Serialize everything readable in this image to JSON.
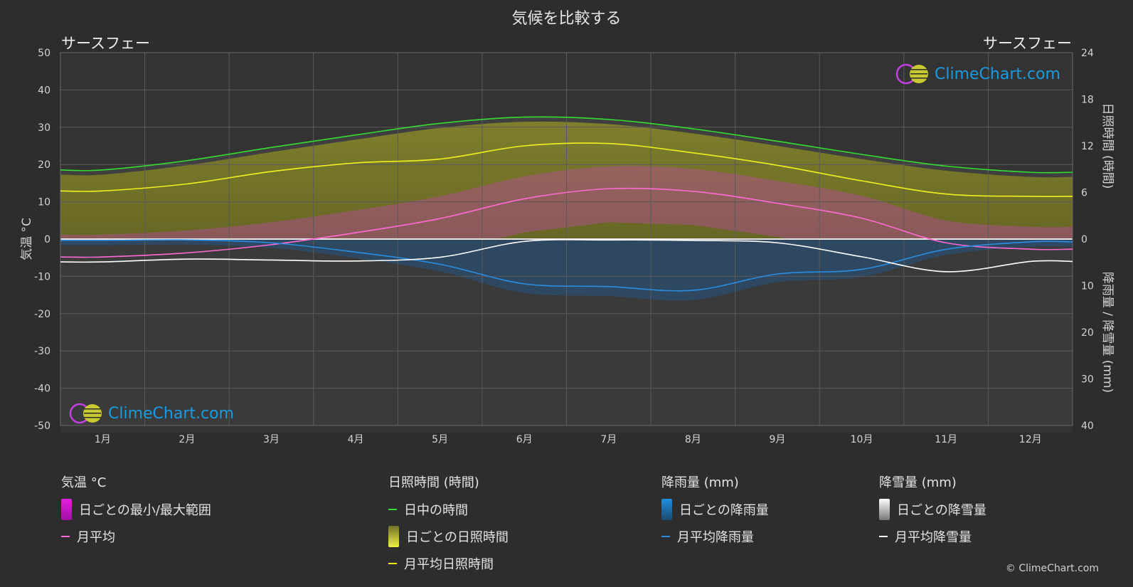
{
  "title": "気候を比較する",
  "location_left": "サースフェー",
  "location_right": "サースフェー",
  "logo_text": "ClimeChart.com",
  "copyright": "© ClimeChart.com",
  "axes": {
    "left_title": "気温 °C",
    "right_top_title": "日照時間 (時間)",
    "right_bottom_title": "降雨量 / 降雪量 (mm)"
  },
  "legend": {
    "groups": [
      {
        "header": "気温 °C",
        "items": [
          {
            "label": "日ごとの最小/最大範囲",
            "swatch": "box",
            "color": "#e020e0"
          },
          {
            "label": "月平均",
            "swatch": "line",
            "color": "#ff6ad5"
          }
        ]
      },
      {
        "header": "日照時間 (時間)",
        "items": [
          {
            "label": "日中の時間",
            "swatch": "line",
            "color": "#33dd33"
          },
          {
            "label": "日ごとの日照時間",
            "swatch": "box",
            "color": "#e8e840"
          },
          {
            "label": "月平均日照時間",
            "swatch": "line",
            "color": "#f0f020"
          }
        ]
      },
      {
        "header": "降雨量 (mm)",
        "items": [
          {
            "label": "日ごとの降雨量",
            "swatch": "box",
            "color": "#1e90e0"
          },
          {
            "label": "月平均降雨量",
            "swatch": "line",
            "color": "#2a8de0"
          }
        ]
      },
      {
        "header": "降雪量 (mm)",
        "items": [
          {
            "label": "日ごとの降雪量",
            "swatch": "box",
            "color": "#ffffff"
          },
          {
            "label": "月平均降雪量",
            "swatch": "line",
            "color": "#ffffff"
          }
        ]
      }
    ]
  },
  "chart_data": {
    "type": "line",
    "categories": [
      "1月",
      "2月",
      "3月",
      "4月",
      "5月",
      "6月",
      "7月",
      "8月",
      "9月",
      "10月",
      "11月",
      "12月"
    ],
    "y_left": {
      "label": "気温 °C",
      "lim": [
        -50,
        50
      ],
      "ticks": [
        50,
        40,
        30,
        20,
        10,
        0,
        -10,
        -20,
        -30,
        -40,
        -50
      ]
    },
    "y_right_top": {
      "label": "日照時間 (時間)",
      "lim": [
        0,
        24
      ],
      "ticks": [
        24,
        18,
        12,
        6,
        0
      ]
    },
    "y_right_bottom": {
      "label": "降雨量 / 降雪量 (mm)",
      "lim": [
        0,
        40
      ],
      "ticks": [
        0,
        10,
        20,
        30,
        40
      ]
    },
    "grid": true,
    "series": [
      {
        "name": "日中の時間",
        "axis": "sunshine_hours",
        "color": "#33dd33",
        "values": [
          8.9,
          10.1,
          11.8,
          13.4,
          14.9,
          15.7,
          15.4,
          14.2,
          12.6,
          10.9,
          9.4,
          8.6
        ]
      },
      {
        "name": "月平均日照時間",
        "axis": "sunshine_hours",
        "color": "#f0f020",
        "values": [
          6.2,
          7.1,
          8.7,
          9.8,
          10.3,
          12.0,
          12.3,
          11.1,
          9.5,
          7.5,
          5.8,
          5.5
        ]
      },
      {
        "name": "月平均",
        "axis": "temperature_c",
        "color": "#ff6ad5",
        "values": [
          -4.8,
          -3.7,
          -1.5,
          1.7,
          5.5,
          10.8,
          13.5,
          12.8,
          9.6,
          5.6,
          -1.0,
          -2.7
        ]
      },
      {
        "name": "月平均降雨量",
        "axis": "precip_mm",
        "color": "#2a8de0",
        "values": [
          0.3,
          0.2,
          0.8,
          2.8,
          5.4,
          9.6,
          10.2,
          11.0,
          7.5,
          6.5,
          2.2,
          0.6
        ]
      },
      {
        "name": "月平均降雪量",
        "axis": "precip_mm",
        "color": "#ffffff",
        "values": [
          4.9,
          4.3,
          4.5,
          4.7,
          3.9,
          0.5,
          0.2,
          0.3,
          0.8,
          3.8,
          7.0,
          4.8
        ]
      }
    ]
  }
}
